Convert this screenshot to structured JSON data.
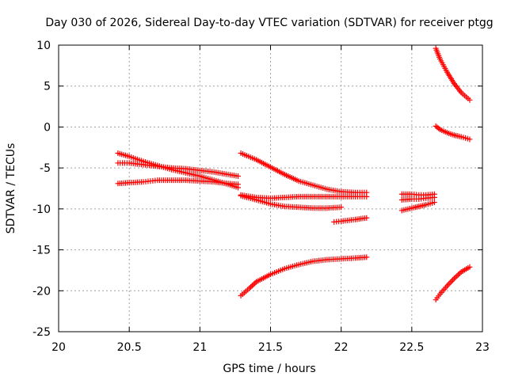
{
  "chart_data": {
    "type": "scatter",
    "title": "Day 030 of 2026, Sidereal Day-to-day VTEC variation (SDTVAR) for receiver ptgg",
    "xlabel": "GPS time / hours",
    "ylabel": "SDTVAR / TECUs",
    "xlim": [
      20,
      23
    ],
    "ylim": [
      -25,
      10
    ],
    "grid": true,
    "marker": "+",
    "color": "#ff0000",
    "x_ticks": [
      20,
      20.5,
      21,
      21.5,
      22,
      22.5,
      23
    ],
    "x_tick_labels": [
      "20",
      "20.5",
      "21",
      "21.5",
      "22",
      "22.5",
      "23"
    ],
    "y_ticks": [
      10,
      5,
      0,
      -5,
      -10,
      -15,
      -20,
      -25
    ],
    "y_tick_labels": [
      "10",
      "5",
      "0",
      "-5",
      "-10",
      "-15",
      "-20",
      "-25"
    ],
    "series": [
      {
        "name": "s1",
        "points": [
          [
            20.42,
            -3.2
          ],
          [
            20.5,
            -3.6
          ],
          [
            20.6,
            -4.2
          ],
          [
            20.7,
            -4.7
          ],
          [
            20.8,
            -5.2
          ],
          [
            20.9,
            -5.6
          ],
          [
            21.0,
            -6.0
          ],
          [
            21.1,
            -6.5
          ],
          [
            21.2,
            -7.0
          ],
          [
            21.27,
            -7.4
          ]
        ]
      },
      {
        "name": "s2",
        "points": [
          [
            20.42,
            -4.4
          ],
          [
            20.5,
            -4.4
          ],
          [
            20.6,
            -4.6
          ],
          [
            20.7,
            -4.8
          ],
          [
            20.8,
            -5.0
          ],
          [
            20.9,
            -5.1
          ],
          [
            21.0,
            -5.3
          ],
          [
            21.1,
            -5.5
          ],
          [
            21.2,
            -5.8
          ],
          [
            21.27,
            -6.0
          ]
        ]
      },
      {
        "name": "s3",
        "points": [
          [
            20.42,
            -6.9
          ],
          [
            20.5,
            -6.8
          ],
          [
            20.6,
            -6.7
          ],
          [
            20.65,
            -6.6
          ],
          [
            20.7,
            -6.5
          ],
          [
            20.8,
            -6.5
          ],
          [
            20.9,
            -6.5
          ],
          [
            21.0,
            -6.6
          ],
          [
            21.1,
            -6.7
          ],
          [
            21.2,
            -6.9
          ],
          [
            21.27,
            -7.0
          ]
        ]
      },
      {
        "name": "s4",
        "points": [
          [
            21.29,
            -3.2
          ],
          [
            21.4,
            -4.0
          ],
          [
            21.5,
            -4.9
          ],
          [
            21.6,
            -5.8
          ],
          [
            21.7,
            -6.6
          ],
          [
            21.8,
            -7.1
          ],
          [
            21.9,
            -7.6
          ],
          [
            22.0,
            -7.9
          ],
          [
            22.1,
            -8.0
          ],
          [
            22.18,
            -8.0
          ]
        ]
      },
      {
        "name": "s5",
        "points": [
          [
            21.29,
            -8.3
          ],
          [
            21.4,
            -8.6
          ],
          [
            21.5,
            -8.7
          ],
          [
            21.6,
            -8.6
          ],
          [
            21.7,
            -8.5
          ],
          [
            21.8,
            -8.5
          ],
          [
            21.9,
            -8.5
          ],
          [
            22.0,
            -8.5
          ],
          [
            22.1,
            -8.5
          ],
          [
            22.18,
            -8.5
          ]
        ]
      },
      {
        "name": "s6",
        "points": [
          [
            21.29,
            -8.4
          ],
          [
            21.4,
            -8.9
          ],
          [
            21.5,
            -9.4
          ],
          [
            21.6,
            -9.7
          ],
          [
            21.7,
            -9.8
          ],
          [
            21.8,
            -9.9
          ],
          [
            21.9,
            -9.9
          ],
          [
            22.0,
            -9.8
          ]
        ]
      },
      {
        "name": "s7",
        "points": [
          [
            21.95,
            -11.6
          ],
          [
            22.0,
            -11.5
          ],
          [
            22.1,
            -11.3
          ],
          [
            22.18,
            -11.1
          ]
        ]
      },
      {
        "name": "s8",
        "points": [
          [
            21.29,
            -20.6
          ],
          [
            21.35,
            -19.7
          ],
          [
            21.4,
            -18.9
          ],
          [
            21.5,
            -18.0
          ],
          [
            21.6,
            -17.3
          ],
          [
            21.7,
            -16.8
          ],
          [
            21.8,
            -16.4
          ],
          [
            21.9,
            -16.2
          ],
          [
            22.0,
            -16.1
          ],
          [
            22.1,
            -16.0
          ],
          [
            22.18,
            -15.9
          ]
        ]
      },
      {
        "name": "s9",
        "points": [
          [
            22.43,
            -8.2
          ],
          [
            22.5,
            -8.2
          ],
          [
            22.55,
            -8.3
          ],
          [
            22.6,
            -8.3
          ],
          [
            22.66,
            -8.2
          ]
        ]
      },
      {
        "name": "s10",
        "points": [
          [
            22.43,
            -8.9
          ],
          [
            22.5,
            -8.8
          ],
          [
            22.55,
            -8.8
          ],
          [
            22.6,
            -8.7
          ],
          [
            22.66,
            -8.6
          ]
        ]
      },
      {
        "name": "s11",
        "points": [
          [
            22.43,
            -10.2
          ],
          [
            22.5,
            -9.9
          ],
          [
            22.55,
            -9.7
          ],
          [
            22.6,
            -9.5
          ],
          [
            22.66,
            -9.2
          ]
        ]
      },
      {
        "name": "s12",
        "points": [
          [
            22.67,
            9.6
          ],
          [
            22.7,
            8.3
          ],
          [
            22.75,
            6.7
          ],
          [
            22.8,
            5.3
          ],
          [
            22.85,
            4.2
          ],
          [
            22.91,
            3.3
          ]
        ]
      },
      {
        "name": "s13",
        "points": [
          [
            22.67,
            0.1
          ],
          [
            22.7,
            -0.3
          ],
          [
            22.75,
            -0.7
          ],
          [
            22.8,
            -1.0
          ],
          [
            22.85,
            -1.2
          ],
          [
            22.91,
            -1.5
          ]
        ]
      },
      {
        "name": "s14",
        "points": [
          [
            22.67,
            -21.1
          ],
          [
            22.7,
            -20.4
          ],
          [
            22.75,
            -19.4
          ],
          [
            22.8,
            -18.5
          ],
          [
            22.85,
            -17.7
          ],
          [
            22.91,
            -17.1
          ]
        ]
      }
    ]
  }
}
